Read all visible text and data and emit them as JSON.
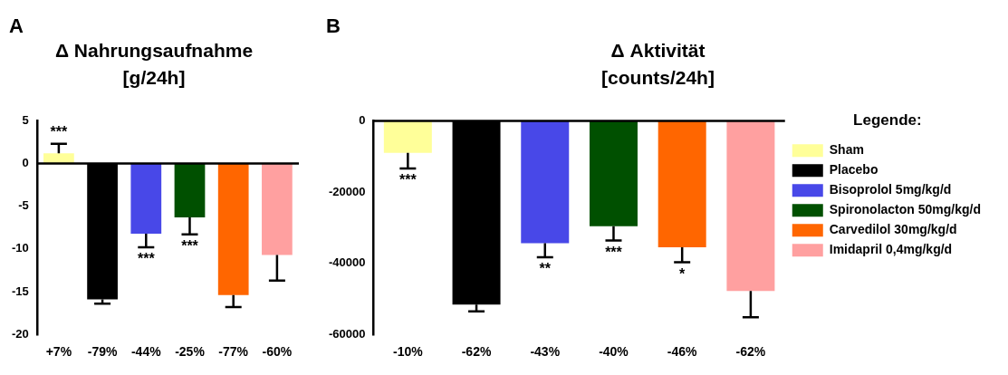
{
  "chart_data": [
    {
      "type": "bar",
      "title": "Δ Nahrungsaufnahme",
      "subtitle": "[g/24h]",
      "categories": [
        "+7%",
        "-79%",
        "-44%",
        "-25%",
        "-77%",
        "-60%"
      ],
      "series": [
        {
          "color": "#ffff99",
          "values": [
            1.2,
            null,
            null,
            null,
            null,
            null
          ],
          "errors": [
            [
              1.2,
              2.3
            ],
            null,
            null,
            null,
            null,
            null
          ]
        },
        {
          "color": "#000000",
          "values": [
            null,
            -15.9,
            null,
            null,
            null,
            null
          ],
          "errors": [
            null,
            [
              -16.4,
              -15.9
            ],
            null,
            null,
            null,
            null
          ]
        },
        {
          "color": "#4848e8",
          "values": [
            null,
            null,
            -8.2,
            null,
            null,
            null
          ],
          "errors": [
            null,
            null,
            [
              -9.8,
              -8.2
            ],
            null,
            null,
            null
          ]
        },
        {
          "color": "#005000",
          "values": [
            null,
            null,
            null,
            -6.3,
            null,
            null
          ],
          "errors": [
            null,
            null,
            null,
            [
              -8.3,
              -6.3
            ],
            null,
            null
          ]
        },
        {
          "color": "#ff6600",
          "values": [
            null,
            null,
            null,
            null,
            -15.4,
            null
          ],
          "errors": [
            null,
            null,
            null,
            null,
            [
              -16.8,
              -15.4
            ],
            null
          ]
        },
        {
          "color": "#ffa0a0",
          "values": [
            null,
            null,
            null,
            null,
            null,
            -10.7
          ],
          "errors": [
            null,
            null,
            null,
            null,
            null,
            [
              -13.7,
              -10.7
            ]
          ]
        }
      ],
      "ylim": [
        -20,
        5
      ],
      "yticks": [
        -20,
        -15,
        -10,
        -5,
        0,
        5
      ],
      "grid": false,
      "legend": false,
      "ref_lines": [
        {
          "axis": "y",
          "value": 0,
          "color": "#000000"
        }
      ],
      "annotations": [
        "A",
        {
          "text": "***",
          "x": "+7%",
          "y": 2.3
        },
        {
          "text": "***",
          "x": "-44%",
          "y": -9.8
        },
        {
          "text": "***",
          "x": "-25%",
          "y": -8.3
        }
      ]
    },
    {
      "type": "bar",
      "title": "Δ Aktivität",
      "subtitle": "[counts/24h]",
      "categories": [
        "-10%",
        "-62%",
        "-43%",
        "-40%",
        "-46%",
        "-62%"
      ],
      "series": [
        {
          "name": "Sham",
          "color": "#ffff99",
          "values": [
            -9000,
            null,
            null,
            null,
            null,
            null
          ],
          "errors": [
            [
              -13400,
              -9000
            ],
            null,
            null,
            null,
            null,
            null
          ]
        },
        {
          "name": "Placebo",
          "color": "#000000",
          "values": [
            null,
            -51600,
            null,
            null,
            null,
            null
          ],
          "errors": [
            null,
            [
              -53500,
              -51600
            ],
            null,
            null,
            null,
            null
          ]
        },
        {
          "name": "Bisoprolol 5mg/kg/d",
          "color": "#4848e8",
          "values": [
            null,
            null,
            -34400,
            null,
            null,
            null
          ],
          "errors": [
            null,
            null,
            [
              -38300,
              -34400
            ],
            null,
            null,
            null
          ]
        },
        {
          "name": "Spironolacton 50mg/kg/d",
          "color": "#005000",
          "values": [
            null,
            null,
            null,
            -29600,
            null,
            null
          ],
          "errors": [
            null,
            null,
            null,
            [
              -33600,
              -29600
            ],
            null,
            null
          ]
        },
        {
          "name": "Carvedilol 30mg/kg/d",
          "color": "#ff6600",
          "values": [
            null,
            null,
            null,
            null,
            -35500,
            null
          ],
          "errors": [
            null,
            null,
            null,
            null,
            [
              -39700,
              -35500
            ],
            null
          ]
        },
        {
          "name": "Imidapril 0,4mg/kg/d",
          "color": "#ffa0a0",
          "values": [
            null,
            null,
            null,
            null,
            null,
            -47800
          ],
          "errors": [
            null,
            null,
            null,
            null,
            null,
            [
              -55200,
              -47800
            ]
          ]
        }
      ],
      "ylim": [
        -60000,
        0
      ],
      "yticks": [
        -60000,
        -40000,
        -20000,
        0
      ],
      "grid": false,
      "legend": "right",
      "legend_title": "Legende:",
      "ref_lines": [
        {
          "axis": "y",
          "value": 0,
          "color": "#000000"
        }
      ],
      "annotations": [
        "B",
        {
          "text": "***",
          "x": "-10%",
          "y": -13400
        },
        {
          "text": "**",
          "x": "-43%",
          "y": -38300
        },
        {
          "text": "***",
          "x": "-40%",
          "y": -33600
        },
        {
          "text": "*",
          "x": "-46%",
          "y": -39700
        }
      ]
    }
  ]
}
